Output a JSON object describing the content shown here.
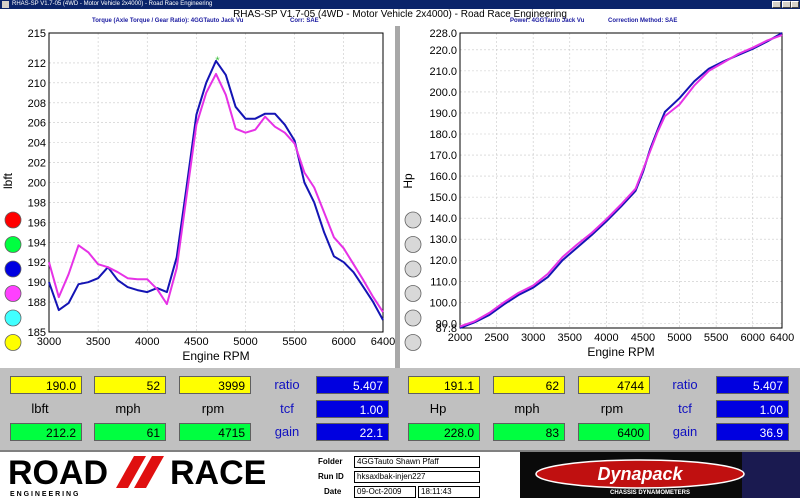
{
  "window": {
    "title": "RHAS-SP V1.7-05   (4WD - Motor Vehicle 2x4000) - Road Race Engineering"
  },
  "header": {
    "main_title": "RHAS-SP V1.7-05   (4WD - Motor Vehicle 2x4000) - Road Race Engineering",
    "left_subtitle_1": "Torque (Axle Torque / Gear Ratio): 4GGTauto Jack Vu",
    "left_subtitle_2": "Corr: SAE",
    "right_subtitle_1": "Power: 4GGTauto Jack Vu",
    "right_subtitle_2": "Correction Method: SAE"
  },
  "colors": {
    "blue_series": "#1414b4",
    "magenta_series": "#e632e6",
    "selector_colors": [
      "#ff0000",
      "#00ff40",
      "#0000e0",
      "#ff40ff",
      "#40ffff",
      "#ffff00"
    ]
  },
  "chart_data": [
    {
      "type": "line",
      "title": "",
      "xlabel": "Engine RPM",
      "ylabel": "lbft",
      "xlim": [
        3000,
        6400
      ],
      "ylim": [
        185,
        215
      ],
      "x_ticks": [
        3000,
        3500,
        4000,
        4500,
        5000,
        5500,
        6000,
        6400
      ],
      "y_ticks": [
        185,
        188,
        190,
        192,
        194,
        196,
        198,
        200,
        202,
        204,
        206,
        208,
        210,
        212,
        215
      ],
      "grid": true,
      "marker": {
        "x": 4715,
        "y": 212.2,
        "symbol": "*",
        "color": "#40c040"
      },
      "series": [
        {
          "color": "#1414b4",
          "points": [
            [
              3000,
              190.0
            ],
            [
              3100,
              187.2
            ],
            [
              3200,
              187.9
            ],
            [
              3300,
              189.8
            ],
            [
              3400,
              190.0
            ],
            [
              3500,
              190.4
            ],
            [
              3600,
              191.5
            ],
            [
              3700,
              190.2
            ],
            [
              3800,
              189.5
            ],
            [
              3900,
              189.2
            ],
            [
              4000,
              189.0
            ],
            [
              4100,
              189.4
            ],
            [
              4200,
              189.0
            ],
            [
              4300,
              192.5
            ],
            [
              4400,
              199.5
            ],
            [
              4500,
              206.8
            ],
            [
              4600,
              210.0
            ],
            [
              4700,
              212.2
            ],
            [
              4800,
              210.8
            ],
            [
              4900,
              207.6
            ],
            [
              5000,
              206.4
            ],
            [
              5100,
              206.4
            ],
            [
              5200,
              206.9
            ],
            [
              5300,
              206.9
            ],
            [
              5400,
              205.8
            ],
            [
              5500,
              204.2
            ],
            [
              5600,
              200.0
            ],
            [
              5700,
              198.0
            ],
            [
              5800,
              195.0
            ],
            [
              5900,
              192.6
            ],
            [
              6000,
              192.0
            ],
            [
              6100,
              191.0
            ],
            [
              6200,
              189.5
            ],
            [
              6300,
              188.0
            ],
            [
              6400,
              186.2
            ]
          ]
        },
        {
          "color": "#e632e6",
          "points": [
            [
              3000,
              192.0
            ],
            [
              3100,
              188.5
            ],
            [
              3200,
              190.8
            ],
            [
              3300,
              193.7
            ],
            [
              3400,
              193.0
            ],
            [
              3500,
              191.8
            ],
            [
              3600,
              191.5
            ],
            [
              3700,
              191.0
            ],
            [
              3800,
              190.4
            ],
            [
              3900,
              190.3
            ],
            [
              4000,
              190.3
            ],
            [
              4100,
              189.3
            ],
            [
              4200,
              187.8
            ],
            [
              4300,
              191.4
            ],
            [
              4400,
              198.6
            ],
            [
              4500,
              205.8
            ],
            [
              4600,
              209.0
            ],
            [
              4700,
              210.9
            ],
            [
              4800,
              208.8
            ],
            [
              4900,
              205.4
            ],
            [
              5000,
              205.0
            ],
            [
              5100,
              205.3
            ],
            [
              5200,
              206.6
            ],
            [
              5300,
              205.6
            ],
            [
              5400,
              205.0
            ],
            [
              5500,
              203.9
            ],
            [
              5600,
              201.0
            ],
            [
              5700,
              199.5
            ],
            [
              5800,
              197.0
            ],
            [
              5900,
              194.5
            ],
            [
              6000,
              193.4
            ],
            [
              6100,
              191.8
            ],
            [
              6200,
              190.2
            ],
            [
              6300,
              188.5
            ],
            [
              6400,
              187.0
            ]
          ]
        }
      ]
    },
    {
      "type": "line",
      "title": "",
      "xlabel": "Engine RPM",
      "ylabel": "Hp",
      "xlim": [
        2000,
        6400
      ],
      "ylim": [
        87.8,
        228.0
      ],
      "x_ticks": [
        2000,
        2500,
        3000,
        3500,
        4000,
        4500,
        5000,
        5500,
        6000,
        6400
      ],
      "x_tick_labels": [
        "2000",
        "2500",
        "3000",
        "3500",
        "4000",
        "4500",
        "5000",
        "5500",
        "6000",
        "6400"
      ],
      "y_ticks": [
        87.8,
        90.0,
        100.0,
        110.0,
        120.0,
        130.0,
        140.0,
        150.0,
        160.0,
        170.0,
        180.0,
        190.0,
        200.0,
        210.0,
        220.0,
        228.0
      ],
      "grid": true,
      "series": [
        {
          "color": "#1414b4",
          "points": [
            [
              2000,
              87.8
            ],
            [
              2200,
              90.5
            ],
            [
              2400,
              94.0
            ],
            [
              2600,
              99.0
            ],
            [
              2800,
              103.5
            ],
            [
              3000,
              107.0
            ],
            [
              3200,
              112.0
            ],
            [
              3400,
              120.0
            ],
            [
              3600,
              126.0
            ],
            [
              3800,
              132.0
            ],
            [
              4000,
              138.5
            ],
            [
              4200,
              145.5
            ],
            [
              4400,
              153.0
            ],
            [
              4500,
              162.0
            ],
            [
              4600,
              173.0
            ],
            [
              4700,
              182.0
            ],
            [
              4800,
              190.5
            ],
            [
              5000,
              197.0
            ],
            [
              5200,
              205.0
            ],
            [
              5400,
              211.0
            ],
            [
              5600,
              214.5
            ],
            [
              5800,
              217.5
            ],
            [
              6000,
              220.5
            ],
            [
              6200,
              224.0
            ],
            [
              6400,
              228.0
            ]
          ]
        },
        {
          "color": "#e632e6",
          "points": [
            [
              2000,
              88.5
            ],
            [
              2200,
              91.0
            ],
            [
              2400,
              95.0
            ],
            [
              2600,
              100.0
            ],
            [
              2800,
              104.5
            ],
            [
              3000,
              108.0
            ],
            [
              3200,
              113.5
            ],
            [
              3400,
              121.5
            ],
            [
              3600,
              127.5
            ],
            [
              3800,
              133.0
            ],
            [
              4000,
              139.5
            ],
            [
              4200,
              146.5
            ],
            [
              4400,
              154.0
            ],
            [
              4500,
              163.0
            ],
            [
              4600,
              172.0
            ],
            [
              4700,
              181.0
            ],
            [
              4800,
              188.5
            ],
            [
              5000,
              194.0
            ],
            [
              5200,
              203.0
            ],
            [
              5400,
              210.0
            ],
            [
              5600,
              214.0
            ],
            [
              5800,
              218.0
            ],
            [
              6000,
              221.0
            ],
            [
              6200,
              224.5
            ],
            [
              6400,
              227.0
            ]
          ]
        }
      ]
    }
  ],
  "readout": {
    "left": {
      "row1": [
        "190.0",
        "52",
        "3999"
      ],
      "labels": [
        "lbft",
        "mph",
        "rpm"
      ],
      "row3": [
        "212.2",
        "61",
        "4715"
      ],
      "side_labels": [
        "ratio",
        "tcf",
        "gain"
      ],
      "side_values": [
        "5.407",
        "1.00",
        "22.1"
      ]
    },
    "right": {
      "row1": [
        "191.1",
        "62",
        "4744"
      ],
      "labels": [
        "Hp",
        "mph",
        "rpm"
      ],
      "row3": [
        "228.0",
        "83",
        "6400"
      ],
      "side_labels": [
        "ratio",
        "tcf",
        "gain"
      ],
      "side_values": [
        "5.407",
        "1.00",
        "36.9"
      ]
    }
  },
  "footer": {
    "logo_word_1": "ROAD",
    "logo_word_2": "RACE",
    "logo_subtext": "E N G I N E E R I N G",
    "folder_label": "Folder",
    "folder_value": "4GGTauto Shawn Pfaff",
    "runid_label": "Run ID",
    "runid_value": "hksaxlbak-injen227",
    "date_label": "Date",
    "date_value": "09-Oct-2009",
    "time_value": "18:11:43",
    "dynapack_name": "Dynapack",
    "dynapack_sub": "CHASSIS DYNAMOMETERS"
  }
}
